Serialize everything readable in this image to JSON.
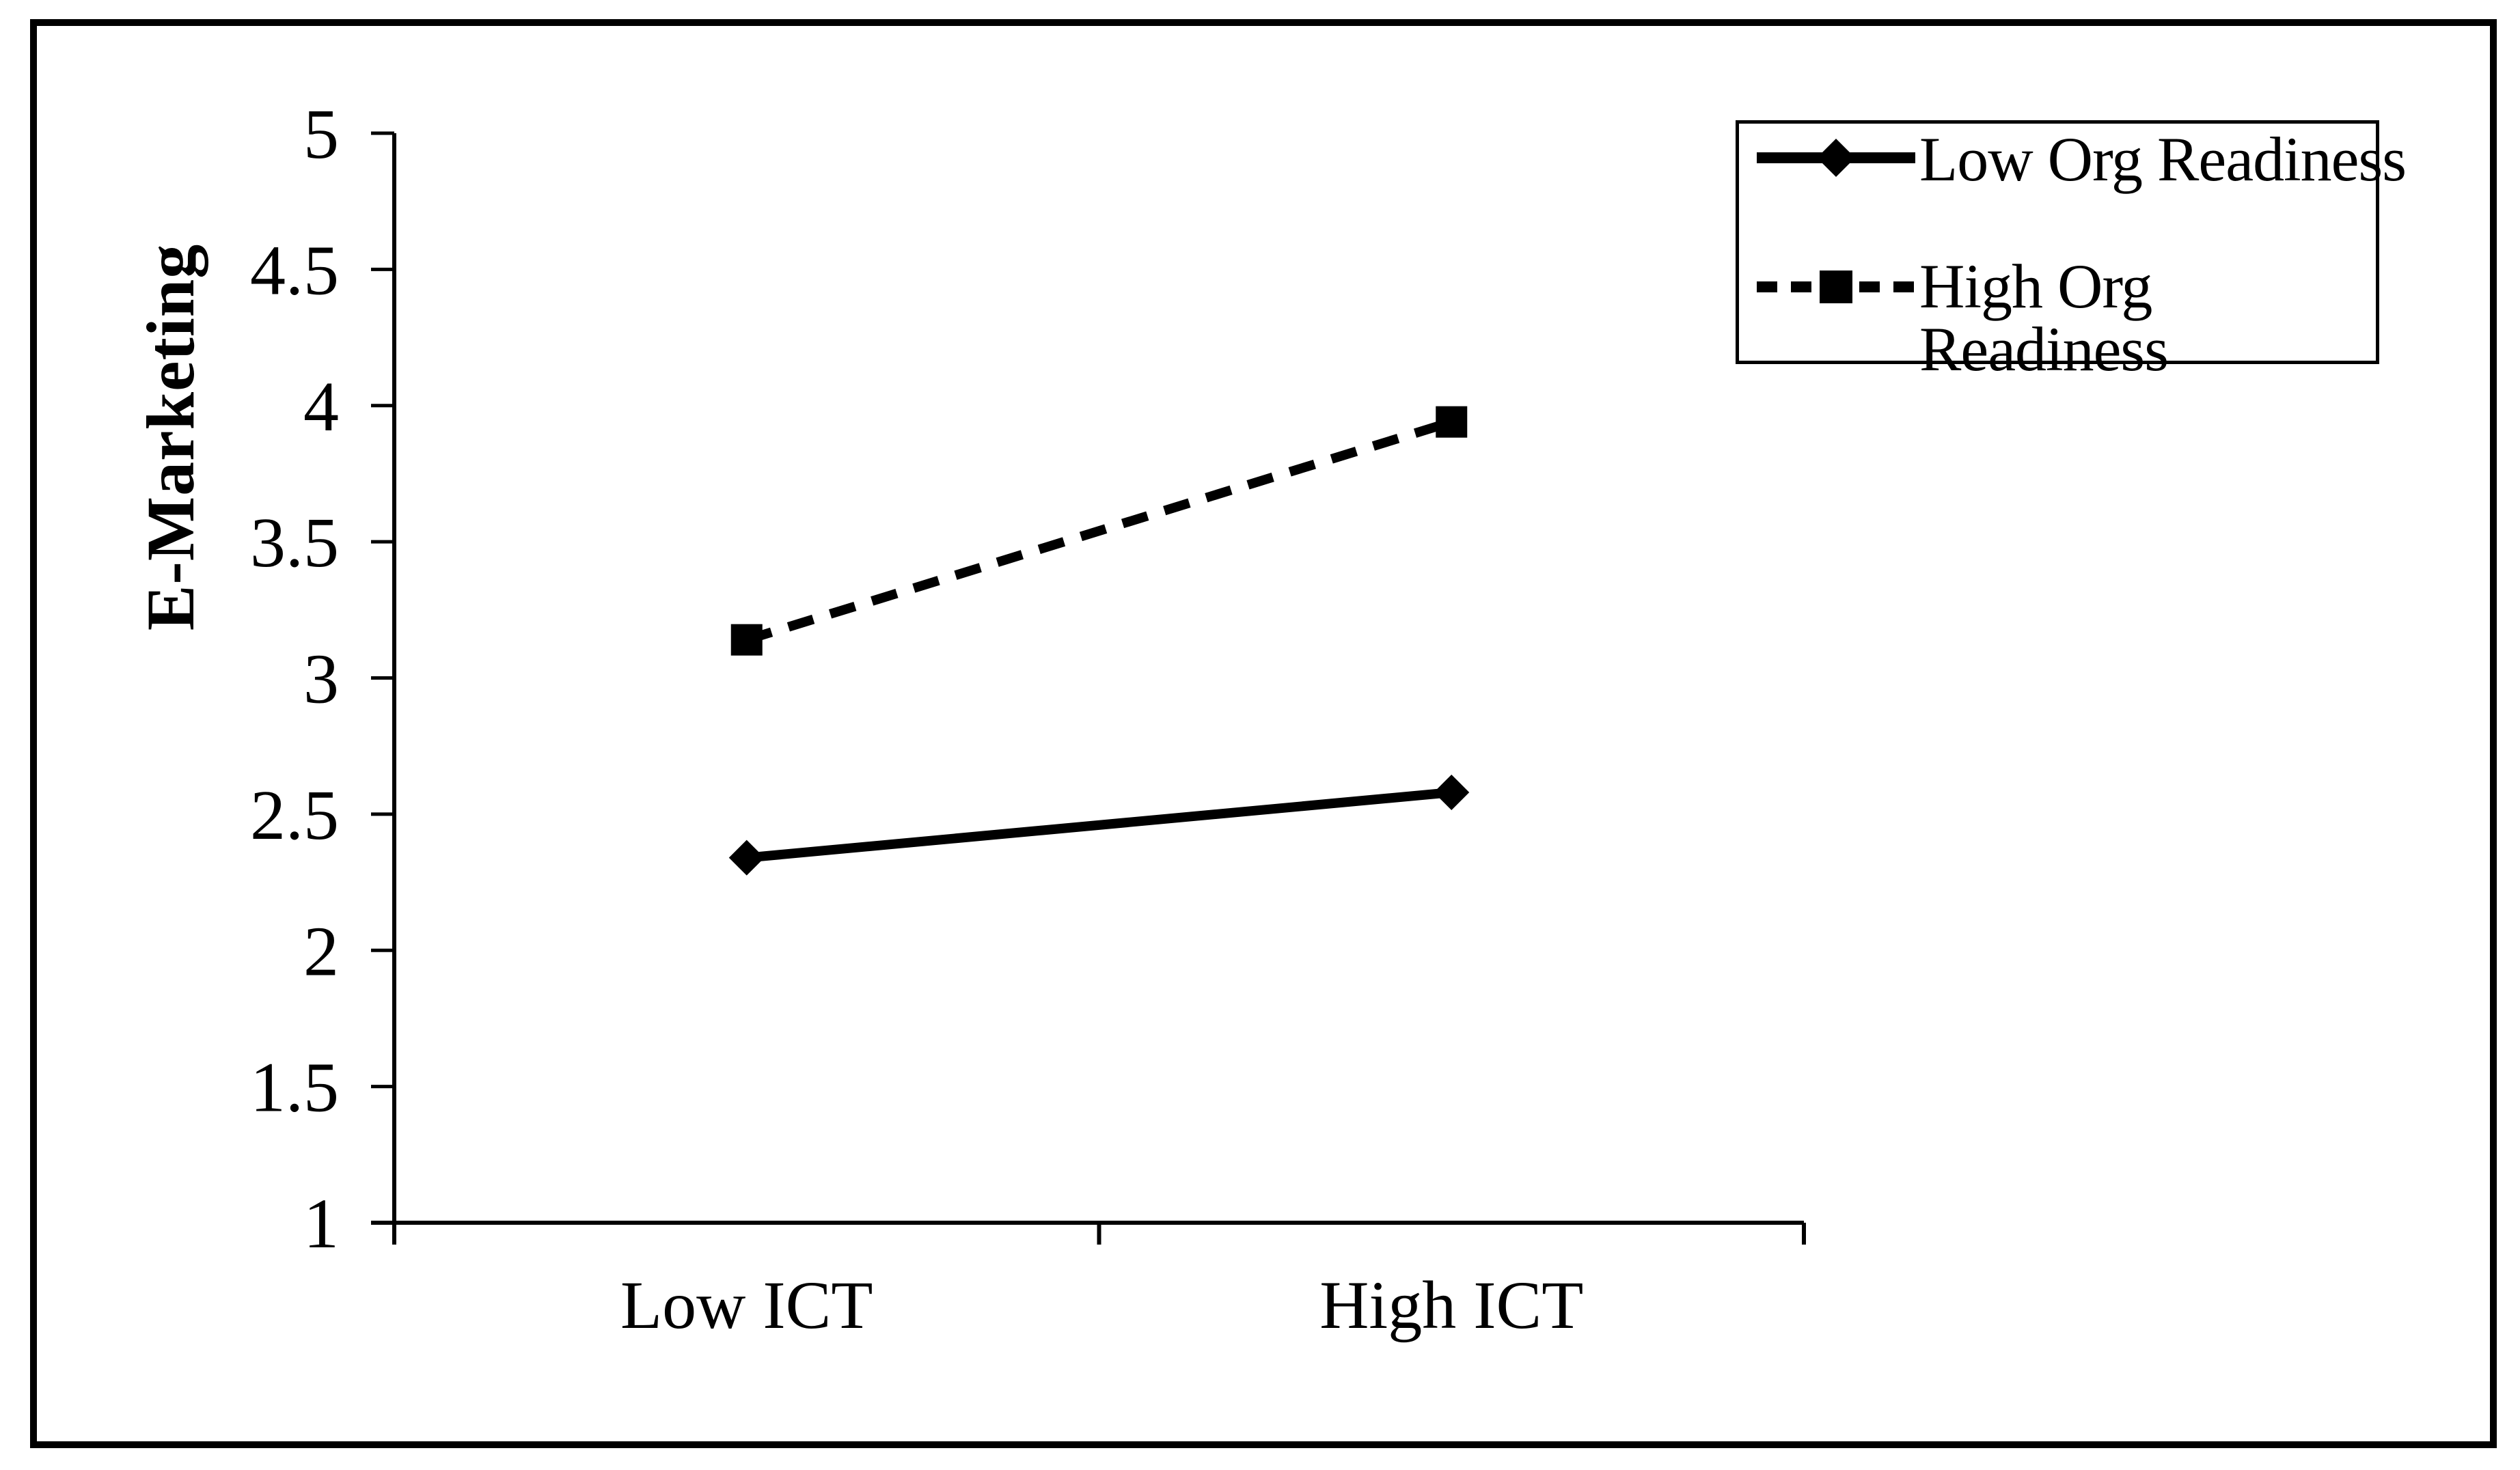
{
  "figure": {
    "background": "#ffffff",
    "frame_border_color": "#000000"
  },
  "colors": {
    "line": "#000000",
    "text": "#000000",
    "background": "#ffffff"
  },
  "chart_data": {
    "type": "line",
    "title": "",
    "xlabel": "",
    "ylabel": "E-Marketing",
    "categories": [
      "Low ICT",
      "High ICT"
    ],
    "series": [
      {
        "name": "Low Org Readiness",
        "values": [
          2.34,
          2.58
        ],
        "line_style": "solid",
        "marker": "diamond"
      },
      {
        "name": "High Org Readiness",
        "values": [
          3.14,
          3.94
        ],
        "line_style": "dashed",
        "marker": "square"
      }
    ],
    "ylim": [
      1,
      5
    ],
    "y_tick_step": 0.5,
    "y_tick_labels": [
      "1",
      "1.5",
      "2",
      "2.5",
      "3",
      "3.5",
      "4",
      "4.5",
      "5"
    ],
    "grid": "off",
    "legend_position": "top-right"
  },
  "legend": {
    "entries": [
      {
        "label": "Low Org Readiness",
        "line": "solid",
        "marker": "diamond"
      },
      {
        "label": "High Org Readiness",
        "line": "dashed",
        "marker": "square"
      }
    ]
  }
}
